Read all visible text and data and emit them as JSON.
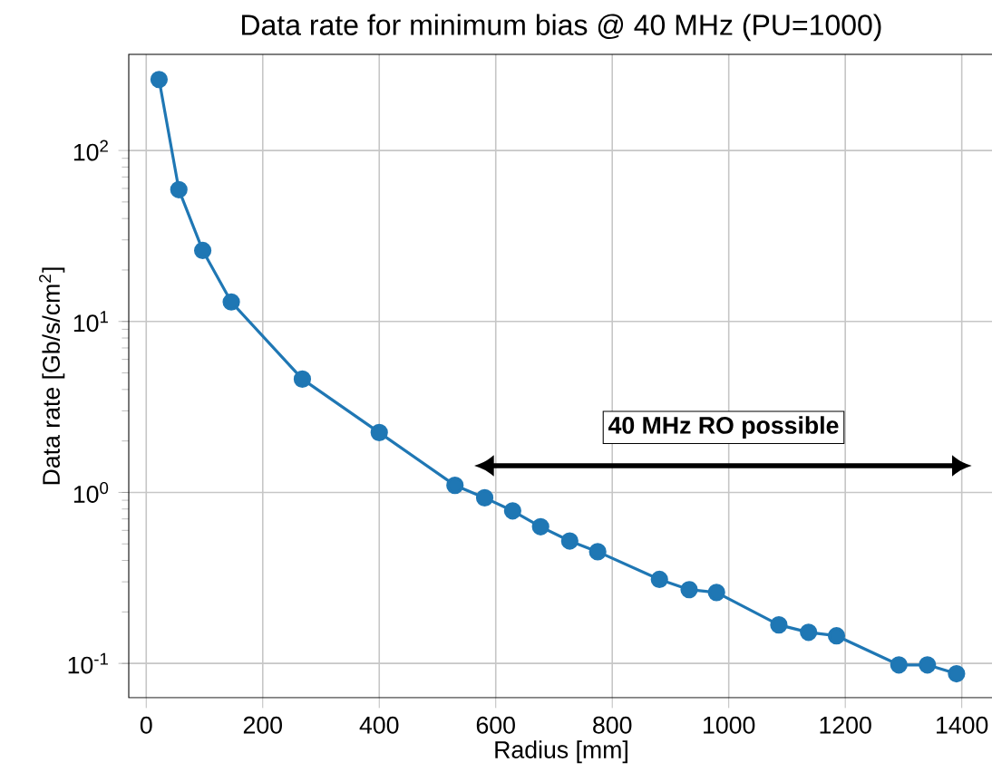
{
  "chart_data": {
    "type": "line",
    "title": "Data rate for minimum bias @ 40 MHz (PU=1000)",
    "xlabel": "Radius [mm]",
    "ylabel": "Data rate [Gb/s/cm$^{2}$]",
    "x": [
      22,
      56,
      97,
      146,
      268,
      400,
      530,
      581,
      629,
      677,
      727,
      775,
      881,
      932,
      979,
      1086,
      1137,
      1185,
      1292,
      1341,
      1391
    ],
    "series": [
      {
        "color": "#1f77b4",
        "values": [
          260,
          59,
          26,
          13,
          4.6,
          2.24,
          1.1,
          0.93,
          0.78,
          0.63,
          0.52,
          0.45,
          0.31,
          0.27,
          0.26,
          0.168,
          0.152,
          0.145,
          0.098,
          0.098,
          0.087
        ]
      }
    ],
    "xlim": [
      -30,
      1455
    ],
    "xticks": [
      0,
      200,
      400,
      600,
      800,
      1000,
      1200,
      1400
    ],
    "ylim": [
      0.063,
      365
    ],
    "log": "y",
    "yticks": [
      {
        "value": 0.1,
        "label": "10$^{-1}$"
      },
      {
        "value": 1,
        "label": "10$^{0}$"
      },
      {
        "value": 10,
        "label": "10$^{1}$"
      },
      {
        "value": 100,
        "label": "10$^{2}$"
      }
    ],
    "grid": true,
    "marker": "circle",
    "line_style": "solid",
    "annotations": [
      "40 MHz RO possible"
    ]
  }
}
